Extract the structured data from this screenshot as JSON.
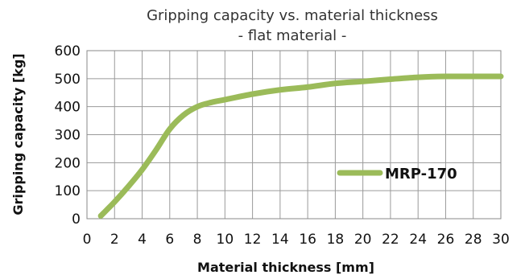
{
  "chart_data": {
    "type": "line",
    "title": "Gripping capacity vs.  material thickness",
    "subtitle": "- flat material -",
    "xlabel": "Material thickness [mm]",
    "ylabel": "Gripping capacity [kg]",
    "xlim": [
      0,
      30
    ],
    "ylim": [
      0,
      600
    ],
    "x_ticks": [
      0,
      2,
      4,
      6,
      8,
      10,
      12,
      14,
      16,
      18,
      20,
      22,
      24,
      26,
      28,
      30
    ],
    "y_ticks": [
      0,
      100,
      200,
      300,
      400,
      500,
      600
    ],
    "grid": true,
    "legend_position": "right",
    "series": [
      {
        "name": "MRP-170",
        "color": "#9bbb59",
        "x": [
          1,
          2,
          3,
          4,
          5,
          6,
          7,
          8,
          9,
          10,
          12,
          14,
          16,
          18,
          20,
          22,
          24,
          26,
          28,
          30
        ],
        "y": [
          10,
          60,
          115,
          175,
          245,
          320,
          370,
          400,
          415,
          425,
          445,
          460,
          470,
          483,
          490,
          498,
          505,
          508,
          508,
          508
        ]
      }
    ]
  }
}
